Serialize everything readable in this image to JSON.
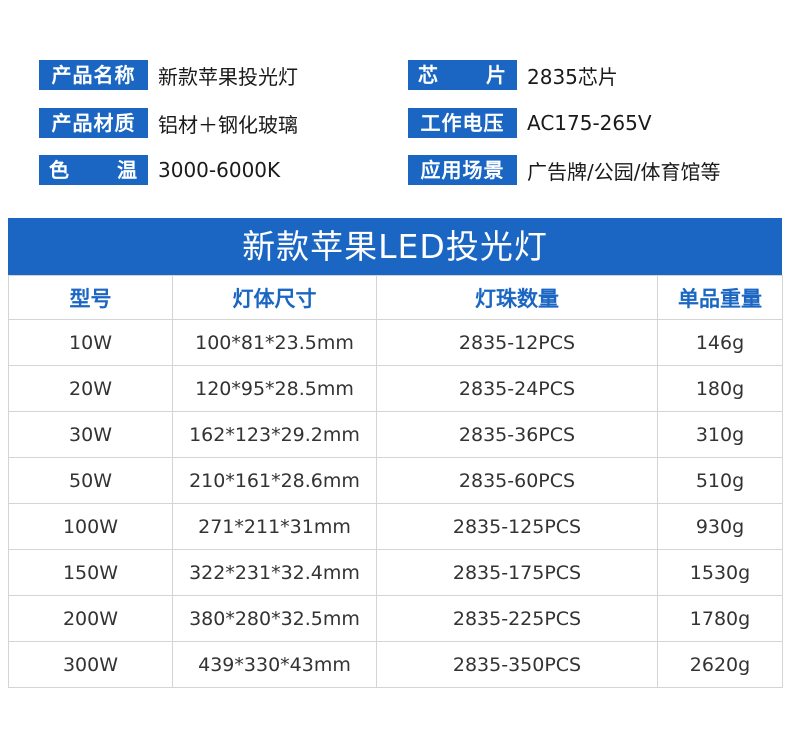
{
  "specs": {
    "product_name_label": "产品名称",
    "product_name_value": "新款苹果投光灯",
    "chip_label": "芯片",
    "chip_value": "2835芯片",
    "material_label": "产品材质",
    "material_value": "铝材＋钢化玻璃",
    "voltage_label": "工作电压",
    "voltage_value": "AC175-265V",
    "color_temp_label": "色温",
    "color_temp_value": "3000-6000K",
    "application_label": "应用场景",
    "application_value": "广告牌/公园/体育馆等"
  },
  "table": {
    "title": "新款苹果LED投光灯",
    "headers": [
      "型号",
      "灯体尺寸",
      "灯珠数量",
      "单品重量"
    ],
    "rows": [
      [
        "10W",
        "100*81*23.5mm",
        "2835-12PCS",
        "146g"
      ],
      [
        "20W",
        "120*95*28.5mm",
        "2835-24PCS",
        "180g"
      ],
      [
        "30W",
        "162*123*29.2mm",
        "2835-36PCS",
        "310g"
      ],
      [
        "50W",
        "210*161*28.6mm",
        "2835-60PCS",
        "510g"
      ],
      [
        "100W",
        "271*211*31mm",
        "2835-125PCS",
        "930g"
      ],
      [
        "150W",
        "322*231*32.4mm",
        "2835-175PCS",
        "1530g"
      ],
      [
        "200W",
        "380*280*32.5mm",
        "2835-225PCS",
        "1780g"
      ],
      [
        "300W",
        "439*330*43mm",
        "2835-350PCS",
        "2620g"
      ]
    ]
  },
  "colors": {
    "accent": "#1a66c2"
  }
}
